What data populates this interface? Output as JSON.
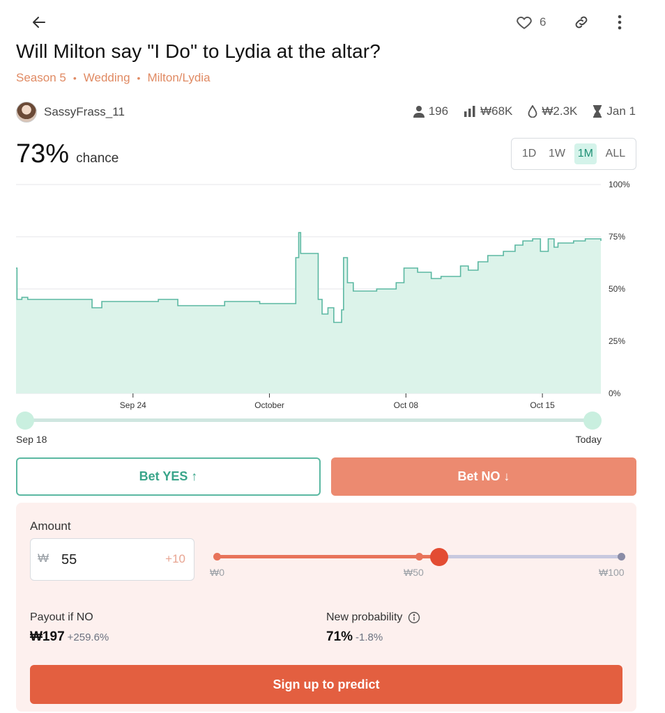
{
  "header": {
    "like_count": "6"
  },
  "market": {
    "title": "Will Milton say \"I Do\" to Lydia at the altar?",
    "tags": [
      "Season 5",
      "Wedding",
      "Milton/Lydia"
    ],
    "creator": "SassyFrass_11",
    "stats": {
      "traders": "196",
      "volume": "₩68K",
      "liquidity": "₩2.3K",
      "close_date": "Jan 1"
    },
    "probability": "73%",
    "probability_label": "chance"
  },
  "time_ranges": [
    {
      "label": "1D",
      "active": false
    },
    {
      "label": "1W",
      "active": false
    },
    {
      "label": "1M",
      "active": true
    },
    {
      "label": "ALL",
      "active": false
    }
  ],
  "chart_data": {
    "type": "area",
    "title": "",
    "xlabel": "",
    "ylabel": "",
    "ylim": [
      0,
      100
    ],
    "y_ticks": [
      "100%",
      "75%",
      "50%",
      "25%",
      "0%"
    ],
    "x_ticks": [
      {
        "label": "Sep 24",
        "day": 6
      },
      {
        "label": "October",
        "day": 13
      },
      {
        "label": "Oct 08",
        "day": 20
      },
      {
        "label": "Oct 15",
        "day": 27
      }
    ],
    "grid": true,
    "color": "#5bb8a2",
    "fill": "#dcf3ea",
    "x_unit": "days since Sep 18",
    "series": [
      {
        "name": "",
        "points": [
          [
            0,
            60
          ],
          [
            0.05,
            45
          ],
          [
            0.3,
            46
          ],
          [
            0.6,
            45
          ],
          [
            1.0,
            45
          ],
          [
            1.5,
            45
          ],
          [
            2.0,
            45
          ],
          [
            3.9,
            41
          ],
          [
            4.4,
            44
          ],
          [
            5.0,
            44
          ],
          [
            7.3,
            45
          ],
          [
            8.3,
            42
          ],
          [
            10.7,
            44
          ],
          [
            12.5,
            43
          ],
          [
            14.3,
            43
          ],
          [
            14.35,
            65
          ],
          [
            14.5,
            77
          ],
          [
            14.6,
            67
          ],
          [
            15.0,
            67
          ],
          [
            15.2,
            67
          ],
          [
            15.5,
            45
          ],
          [
            15.7,
            38
          ],
          [
            16.0,
            41
          ],
          [
            16.3,
            34
          ],
          [
            16.7,
            40
          ],
          [
            16.8,
            65
          ],
          [
            17.0,
            53
          ],
          [
            17.3,
            49
          ],
          [
            18.5,
            50
          ],
          [
            19.2,
            50
          ],
          [
            19.5,
            53
          ],
          [
            19.9,
            60
          ],
          [
            20.6,
            58
          ],
          [
            21.3,
            55
          ],
          [
            21.8,
            56
          ],
          [
            22.2,
            56
          ],
          [
            22.8,
            61
          ],
          [
            23.2,
            59
          ],
          [
            23.7,
            63
          ],
          [
            24.2,
            66
          ],
          [
            25.0,
            68
          ],
          [
            25.6,
            71
          ],
          [
            26.0,
            73
          ],
          [
            26.5,
            74
          ],
          [
            26.9,
            68
          ],
          [
            27.3,
            74
          ],
          [
            27.6,
            70
          ],
          [
            27.8,
            72
          ],
          [
            28.2,
            72
          ],
          [
            28.6,
            73
          ],
          [
            29.2,
            74
          ],
          [
            30.0,
            73
          ]
        ]
      }
    ],
    "x_range": [
      0,
      30
    ]
  },
  "timeline": {
    "start_label": "Sep 18",
    "end_label": "Today"
  },
  "bet": {
    "yes_label": "Bet YES ↑",
    "no_label": "Bet NO ↓"
  },
  "panel": {
    "amount_label": "Amount",
    "currency_symbol": "₩",
    "amount_value": "55",
    "increment_label": "+10",
    "slider": {
      "min_label": "₩0",
      "mid_label": "₩50",
      "max_label": "₩100",
      "value_fraction": 0.55
    },
    "payout_label": "Payout if NO",
    "payout_value": "₩197",
    "payout_change": "+259.6%",
    "new_prob_label": "New probability",
    "new_prob_value": "71%",
    "new_prob_change": "-1.8%",
    "signup_label": "Sign up to predict"
  }
}
